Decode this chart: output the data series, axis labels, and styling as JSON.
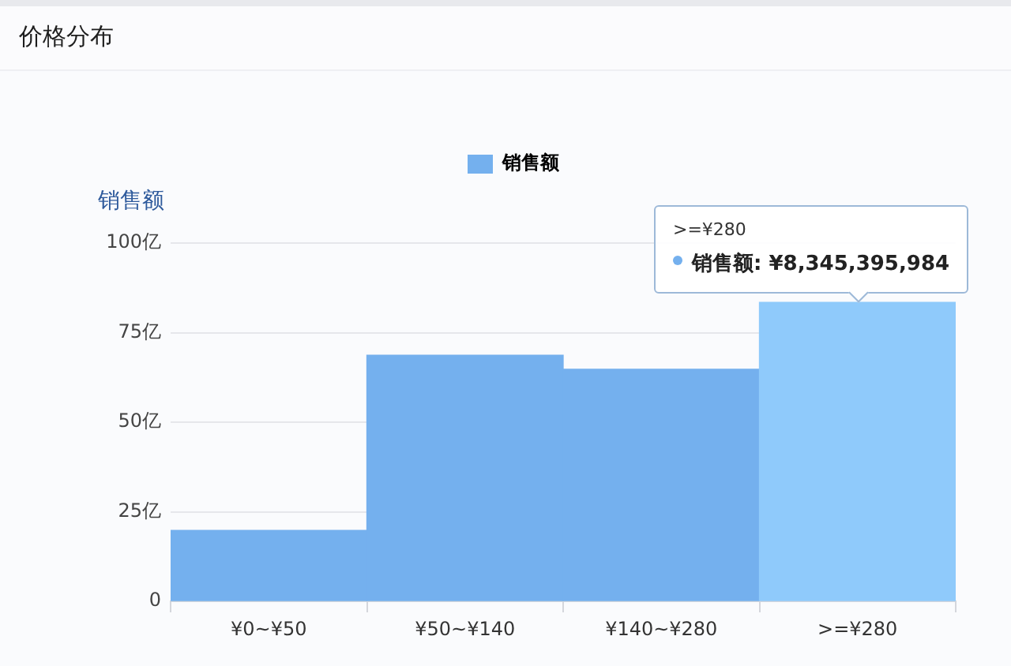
{
  "chart_data": {
    "type": "bar",
    "title": "价格分布",
    "ylabel": "销售额",
    "categories": [
      "¥0~¥50",
      "¥50~¥140",
      "¥140~¥280",
      ">=¥280"
    ],
    "series": [
      {
        "name": "销售额",
        "color": "#74b0ee",
        "colors": [
          "#74b0ee",
          "#74b0ee",
          "#74b0ee",
          "#8fcafb"
        ],
        "values": [
          19.8,
          68.7,
          64.8,
          83.45
        ]
      }
    ],
    "ylim": [
      0,
      100
    ],
    "yticks": [
      0,
      {
        "value": 25,
        "label": "25亿"
      },
      {
        "value": 50,
        "label": "50亿"
      },
      {
        "value": 75,
        "label": "75亿"
      },
      {
        "value": 100,
        "label": "100亿"
      }
    ],
    "grid": "y",
    "legend": "top",
    "annotations": [
      {
        "text": ">=¥280\n销售额: ¥8,345,395,984",
        "x": ">=¥280",
        "y": 83.45
      }
    ]
  }
}
